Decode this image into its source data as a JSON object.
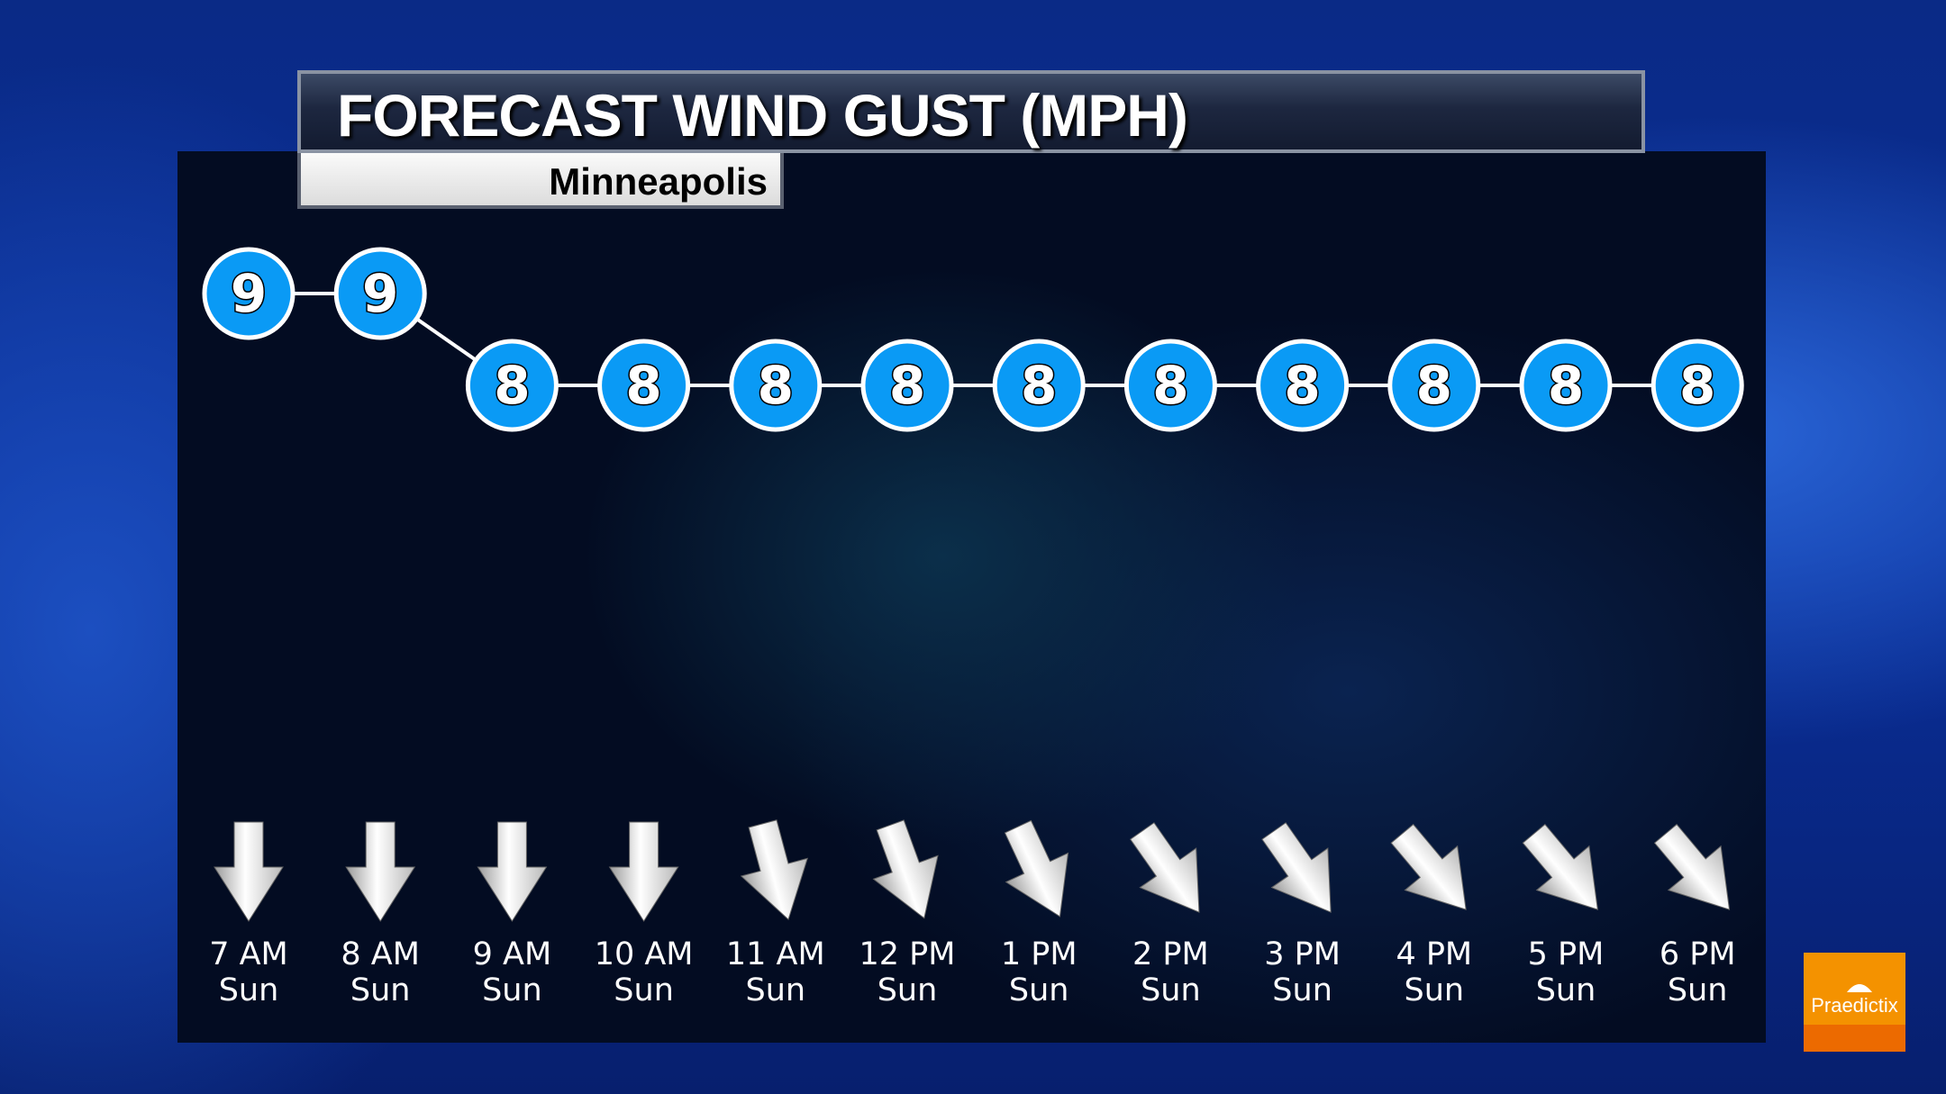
{
  "header": {
    "title": "FORECAST WIND GUST (MPH)",
    "location": "Minneapolis"
  },
  "logo": {
    "text": "Praedictix",
    "color": "#f49200"
  },
  "colors": {
    "marker": "#0a9af5",
    "marker_border": "#ffffff",
    "line": "#ffffff"
  },
  "chart_data": {
    "type": "line",
    "title": "FORECAST WIND GUST (MPH)",
    "subtitle": "Minneapolis",
    "categories": [
      "7 AM Sun",
      "8 AM Sun",
      "9 AM Sun",
      "10 AM Sun",
      "11 AM Sun",
      "12 PM Sun",
      "1 PM Sun",
      "2 PM Sun",
      "3 PM Sun",
      "4 PM Sun",
      "5 PM Sun",
      "6 PM Sun"
    ],
    "time_labels": [
      "7 AM",
      "8 AM",
      "9 AM",
      "10 AM",
      "11 AM",
      "12 PM",
      "1 PM",
      "2 PM",
      "3 PM",
      "4 PM",
      "5 PM",
      "6 PM"
    ],
    "day_labels": [
      "Sun",
      "Sun",
      "Sun",
      "Sun",
      "Sun",
      "Sun",
      "Sun",
      "Sun",
      "Sun",
      "Sun",
      "Sun",
      "Sun"
    ],
    "values": [
      9,
      9,
      8,
      8,
      8,
      8,
      8,
      8,
      8,
      8,
      8,
      8
    ],
    "wind_from_deg": [
      360,
      360,
      360,
      360,
      345,
      340,
      335,
      325,
      325,
      320,
      320,
      320
    ],
    "data_labels": true,
    "grid": false
  }
}
